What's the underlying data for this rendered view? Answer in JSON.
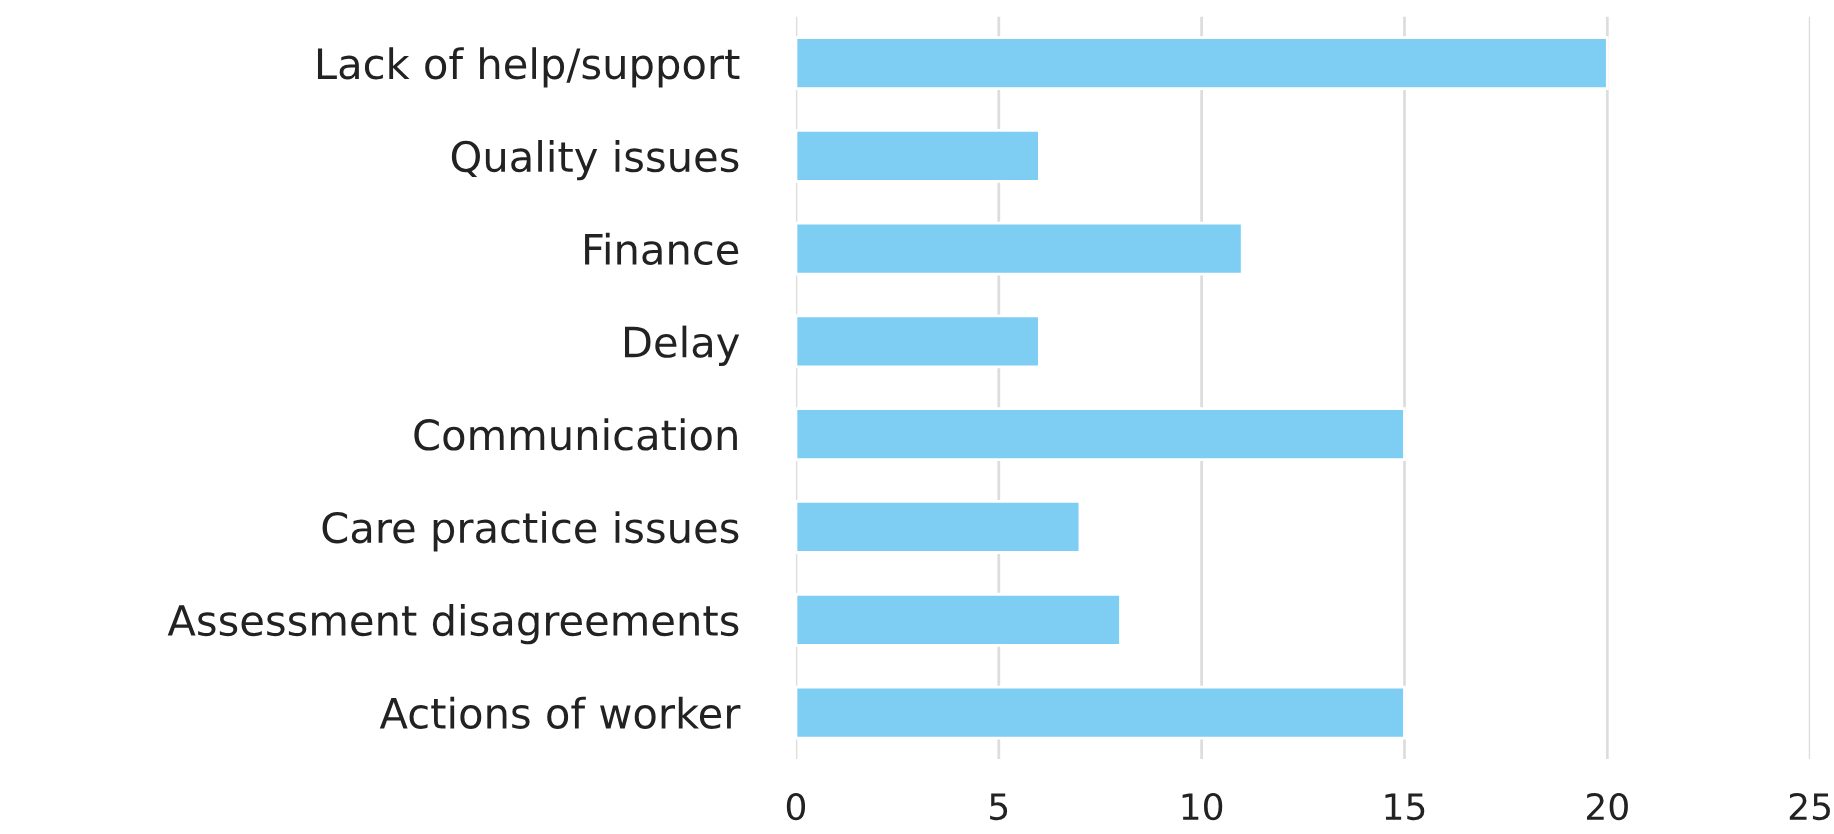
{
  "chart_data": {
    "type": "bar",
    "orientation": "horizontal",
    "categories": [
      "Lack of help/support",
      "Quality issues",
      "Finance",
      "Delay",
      "Communication",
      "Care practice issues",
      "Assessment disagreements",
      "Actions of worker"
    ],
    "values": [
      20,
      6,
      11,
      6,
      15,
      7,
      8,
      15
    ],
    "color": "#7ecef4",
    "xlim": [
      0,
      25
    ],
    "xticks": [
      0,
      5,
      10,
      15,
      20,
      25
    ],
    "grid": "x"
  }
}
